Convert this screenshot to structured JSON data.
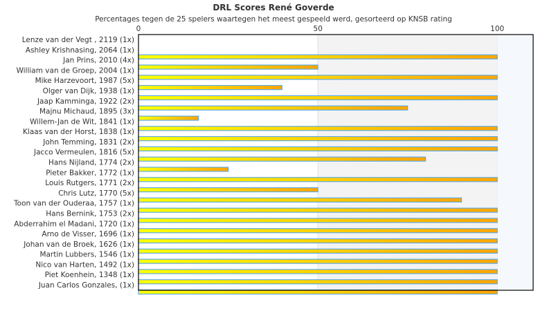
{
  "chart_data": {
    "type": "bar",
    "orientation": "horizontal",
    "title": "DRL Scores René Goverde",
    "subtitle": "Percentages tegen de 25 spelers waartegen het meest gespeeld werd, gesorteerd op KNSB rating",
    "xlim": [
      0,
      110
    ],
    "xticks": [
      0,
      50,
      100
    ],
    "categories": [
      "Lenze van der Vegt , 2119 (1x)",
      "Ashley Krishnasing, 2064 (1x)",
      "Jan Prins, 2010 (4x)",
      "William van de Groep, 2004 (1x)",
      "Mike Harzevoort, 1987 (5x)",
      "Olger van Dijk, 1938 (1x)",
      "Jaap Kamminga, 1922 (2x)",
      "Majnu Michaud, 1895 (3x)",
      "Willem-Jan de Wit, 1841 (1x)",
      "Klaas van der Horst, 1838 (1x)",
      "John Temming, 1831 (2x)",
      "Jacco Vermeulen, 1816 (5x)",
      "Hans Nijland, 1774 (2x)",
      "Pieter Bakker, 1772 (1x)",
      "Louis Rutgers, 1771 (2x)",
      "Chris Lutz, 1770 (5x)",
      "Toon van der Ouderaa, 1757 (1x)",
      "Hans Bernink, 1753 (2x)",
      "Abderrahim el Madani, 1720 (1x)",
      "Arno de Visser, 1696 (1x)",
      "Johan van de Broek, 1626 (1x)",
      "Martin Lubbers, 1546 (1x)",
      "Nico van Harten, 1492 (1x)",
      "Piet Koenhein, 1348 (1x)",
      "Juan Carlos Gonzales,  (1x)"
    ],
    "values": [
      0,
      100,
      50,
      100,
      40,
      100,
      75,
      16.7,
      100,
      100,
      100,
      80,
      25,
      100,
      50,
      90,
      100,
      100,
      100,
      100,
      100,
      100,
      100,
      100,
      100
    ],
    "colors": {
      "bar_start": "#ffff00",
      "bar_end": "#ffa500",
      "bar_border": "#5aaae8",
      "band_mid": "#f3f3f3",
      "band_high": "#f5f9fd"
    },
    "grid": true,
    "legend": "none"
  }
}
